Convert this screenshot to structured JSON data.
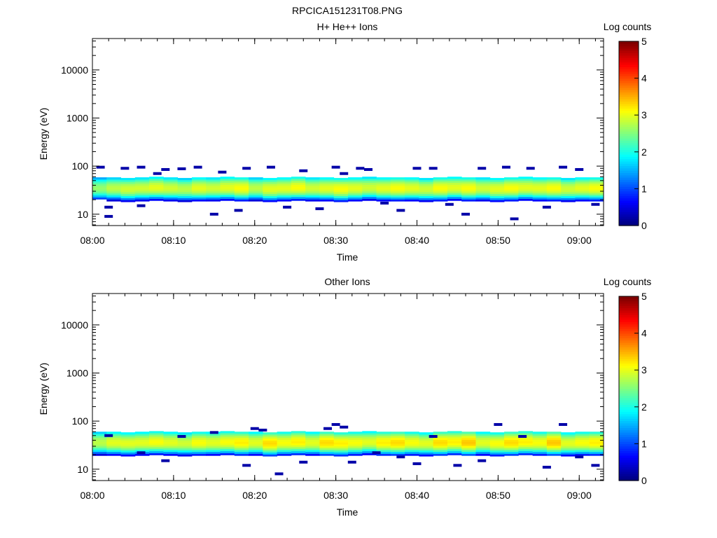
{
  "figure": {
    "title": "RPCICA151231T08.PNG"
  },
  "chart_data": [
    {
      "type": "heatmap",
      "title": "H+ He++ Ions",
      "xlabel": "Time",
      "ylabel": "Energy (eV)",
      "x_ticks": [
        "08:00",
        "08:10",
        "08:20",
        "08:30",
        "08:40",
        "08:50",
        "09:00"
      ],
      "xlim": [
        "08:00",
        "09:03"
      ],
      "y_scale": "log",
      "y_ticks": [
        "10",
        "100",
        "1000",
        "10000"
      ],
      "ylim": [
        5.8,
        45000
      ],
      "colorbar": {
        "label": "Log counts",
        "ticks": [
          "0",
          "1",
          "2",
          "3",
          "4",
          "5"
        ],
        "range": [
          0,
          5
        ],
        "colormap": "jet"
      },
      "band": {
        "center_eV": [
          33,
          33,
          32,
          33,
          34,
          33,
          32,
          33,
          33,
          34,
          33,
          33,
          32,
          33,
          34,
          33,
          33,
          32,
          33,
          34,
          33,
          33,
          33,
          32,
          33,
          34,
          33,
          33,
          32,
          33,
          34,
          33,
          33,
          32,
          33,
          33
        ],
        "peak_log_counts": [
          2.6,
          2.8,
          2.9,
          2.9,
          3.0,
          2.9,
          2.8,
          3.0,
          2.9,
          3.0,
          3.1,
          2.8,
          3.0,
          3.0,
          3.1,
          2.9,
          3.0,
          3.1,
          3.0,
          2.9,
          3.0,
          3.1,
          3.0,
          2.9,
          3.1,
          3.0,
          3.1,
          2.9,
          3.0,
          3.1,
          3.0,
          3.0,
          3.1,
          2.9,
          3.0,
          3.1
        ]
      },
      "sparse_low_count_points": [
        {
          "t": "08:01",
          "e": 95
        },
        {
          "t": "08:02",
          "e": 14
        },
        {
          "t": "08:02",
          "e": 9
        },
        {
          "t": "08:04",
          "e": 90
        },
        {
          "t": "08:06",
          "e": 95
        },
        {
          "t": "08:06",
          "e": 15
        },
        {
          "t": "08:08",
          "e": 70
        },
        {
          "t": "08:09",
          "e": 85
        },
        {
          "t": "08:11",
          "e": 88
        },
        {
          "t": "08:13",
          "e": 95
        },
        {
          "t": "08:16",
          "e": 75
        },
        {
          "t": "08:15",
          "e": 10
        },
        {
          "t": "08:18",
          "e": 12
        },
        {
          "t": "08:19",
          "e": 90
        },
        {
          "t": "08:22",
          "e": 95
        },
        {
          "t": "08:24",
          "e": 14
        },
        {
          "t": "08:26",
          "e": 80
        },
        {
          "t": "08:28",
          "e": 13
        },
        {
          "t": "08:30",
          "e": 95
        },
        {
          "t": "08:31",
          "e": 70
        },
        {
          "t": "08:33",
          "e": 90
        },
        {
          "t": "08:34",
          "e": 85
        },
        {
          "t": "08:36",
          "e": 17
        },
        {
          "t": "08:38",
          "e": 12
        },
        {
          "t": "08:40",
          "e": 90
        },
        {
          "t": "08:42",
          "e": 90
        },
        {
          "t": "08:44",
          "e": 16
        },
        {
          "t": "08:46",
          "e": 10
        },
        {
          "t": "08:48",
          "e": 90
        },
        {
          "t": "08:51",
          "e": 95
        },
        {
          "t": "08:52",
          "e": 8
        },
        {
          "t": "08:54",
          "e": 90
        },
        {
          "t": "08:56",
          "e": 14
        },
        {
          "t": "08:58",
          "e": 95
        },
        {
          "t": "09:00",
          "e": 85
        },
        {
          "t": "09:02",
          "e": 16
        }
      ]
    },
    {
      "type": "heatmap",
      "title": "Other Ions",
      "xlabel": "Time",
      "ylabel": "Energy (eV)",
      "x_ticks": [
        "08:00",
        "08:10",
        "08:20",
        "08:30",
        "08:40",
        "08:50",
        "09:00"
      ],
      "xlim": [
        "08:00",
        "09:03"
      ],
      "y_scale": "log",
      "y_ticks": [
        "10",
        "100",
        "1000",
        "10000"
      ],
      "ylim": [
        5.8,
        45000
      ],
      "colorbar": {
        "label": "Log counts",
        "ticks": [
          "0",
          "1",
          "2",
          "3",
          "4",
          "5"
        ],
        "range": [
          0,
          5
        ],
        "colormap": "jet"
      },
      "band": {
        "center_eV": [
          34,
          34,
          33,
          34,
          35,
          34,
          33,
          34,
          34,
          35,
          34,
          34,
          33,
          34,
          35,
          34,
          34,
          33,
          34,
          35,
          34,
          34,
          34,
          33,
          34,
          35,
          34,
          34,
          33,
          34,
          35,
          34,
          34,
          33,
          34,
          34
        ],
        "peak_log_counts": [
          2.8,
          3.0,
          3.0,
          3.0,
          3.1,
          3.0,
          2.9,
          3.1,
          3.0,
          3.1,
          3.2,
          3.0,
          3.3,
          3.1,
          3.2,
          3.0,
          3.3,
          3.2,
          3.1,
          3.0,
          3.2,
          3.3,
          3.1,
          3.0,
          3.3,
          3.2,
          3.4,
          3.0,
          3.1,
          3.3,
          3.2,
          3.1,
          3.4,
          3.0,
          3.1,
          3.2
        ]
      },
      "sparse_low_count_points": [
        {
          "t": "08:02",
          "e": 50
        },
        {
          "t": "08:06",
          "e": 22
        },
        {
          "t": "08:09",
          "e": 15
        },
        {
          "t": "08:11",
          "e": 48
        },
        {
          "t": "08:15",
          "e": 58
        },
        {
          "t": "08:19",
          "e": 12
        },
        {
          "t": "08:20",
          "e": 70
        },
        {
          "t": "08:21",
          "e": 65
        },
        {
          "t": "08:23",
          "e": 8
        },
        {
          "t": "08:26",
          "e": 14
        },
        {
          "t": "08:29",
          "e": 70
        },
        {
          "t": "08:30",
          "e": 85
        },
        {
          "t": "08:31",
          "e": 75
        },
        {
          "t": "08:32",
          "e": 14
        },
        {
          "t": "08:35",
          "e": 22
        },
        {
          "t": "08:38",
          "e": 18
        },
        {
          "t": "08:40",
          "e": 13
        },
        {
          "t": "08:42",
          "e": 48
        },
        {
          "t": "08:45",
          "e": 12
        },
        {
          "t": "08:48",
          "e": 15
        },
        {
          "t": "08:50",
          "e": 85
        },
        {
          "t": "08:53",
          "e": 48
        },
        {
          "t": "08:56",
          "e": 11
        },
        {
          "t": "08:58",
          "e": 85
        },
        {
          "t": "09:00",
          "e": 18
        },
        {
          "t": "09:02",
          "e": 12
        }
      ]
    }
  ]
}
